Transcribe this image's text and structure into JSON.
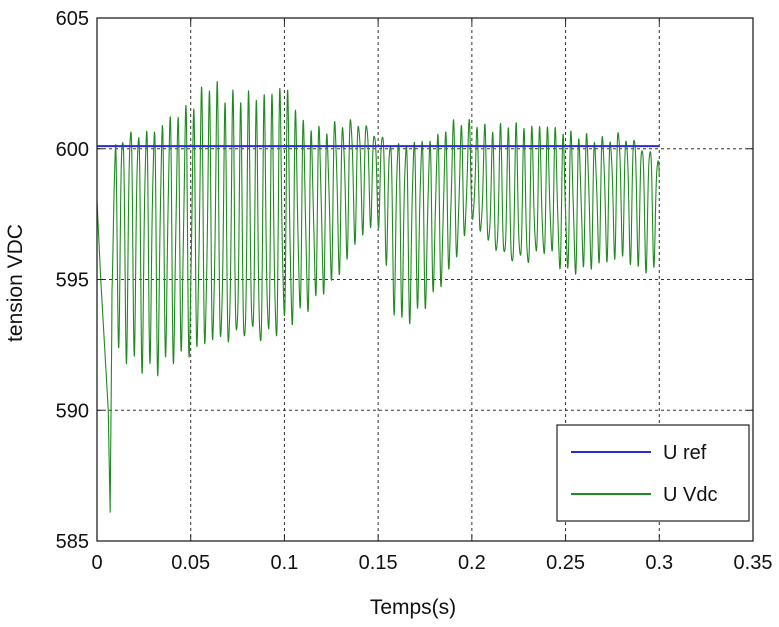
{
  "chart_data": {
    "type": "line",
    "title": "",
    "xlabel": "Temps(s)",
    "ylabel": "tension VDC",
    "xlim": [
      0,
      0.35
    ],
    "ylim": [
      585,
      605
    ],
    "xticks": [
      "0",
      "0.05",
      "0.1",
      "0.15",
      "0.2",
      "0.25",
      "0.3",
      "0.35"
    ],
    "yticks": [
      "585",
      "590",
      "595",
      "600",
      "605"
    ],
    "grid": true,
    "legend_position": "bottom-right",
    "series": [
      {
        "name": "U ref",
        "color": "#2b2bd6",
        "x": [
          0,
          0.3
        ],
        "y": [
          600.1,
          600.1
        ]
      },
      {
        "name": "U Vdc",
        "color": "#1f8a1f",
        "note_shape": "oscillating signal, period about 0.004 s",
        "x": [
          0,
          0.002,
          0.004,
          0.006,
          0.007,
          0.008,
          0.01,
          0.02,
          0.03,
          0.04,
          0.05,
          0.06,
          0.07,
          0.08,
          0.09,
          0.1,
          0.11,
          0.12,
          0.13,
          0.14,
          0.15,
          0.16,
          0.17,
          0.18,
          0.19,
          0.2,
          0.21,
          0.22,
          0.23,
          0.24,
          0.25,
          0.26,
          0.27,
          0.28,
          0.29,
          0.3
        ],
        "upper": [
          598.5,
          597.5,
          596.0,
          594.0,
          592.0,
          596.0,
          602.2,
          602.2,
          602.0,
          602.2,
          602.3,
          603.0,
          602.3,
          602.3,
          602.3,
          602.9,
          601.5,
          601.3,
          601.8,
          601.8,
          601.2,
          601.4,
          601.2,
          601.0,
          601.4,
          601.2,
          600.9,
          601.1,
          601.0,
          601.1,
          601.0,
          601.0,
          601.0,
          601.4,
          601.1,
          600.4
        ],
        "lower": [
          598.0,
          595.0,
          592.5,
          590.0,
          586.1,
          594.0,
          592.0,
          591.5,
          591.0,
          591.3,
          591.2,
          591.3,
          591.0,
          591.1,
          591.0,
          592.0,
          593.0,
          594.0,
          595.0,
          596.5,
          597.0,
          593.0,
          593.3,
          594.0,
          595.0,
          596.8,
          595.5,
          594.7,
          594.8,
          595.5,
          594.7,
          595.0,
          595.4,
          595.7,
          595.2,
          595.2
        ]
      }
    ]
  }
}
